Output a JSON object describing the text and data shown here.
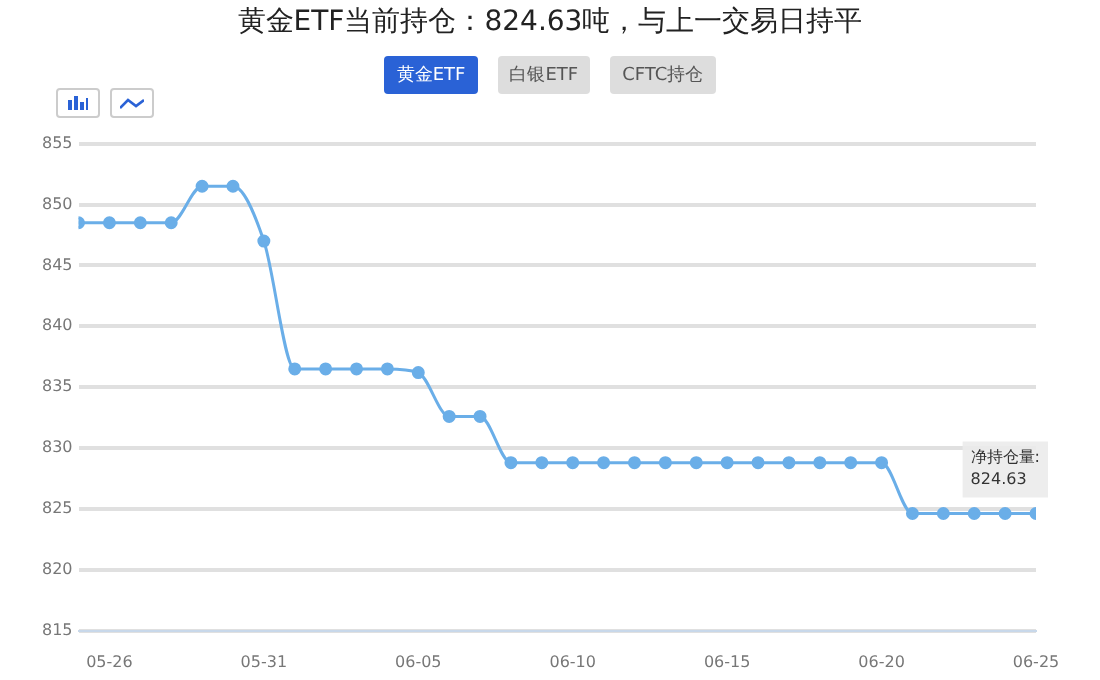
{
  "chart_data": {
    "type": "line",
    "title": "黄金ETF当前持仓：824.63吨，与上一交易日持平",
    "x": [
      "--05-25",
      "--05-26",
      "--05-27",
      "--05-28",
      "--05-29",
      "--05-30",
      "--05-31",
      "--06-01",
      "--06-02",
      "--06-03",
      "--06-04",
      "--06-05",
      "--06-06",
      "--06-07",
      "--06-08",
      "--06-09",
      "--06-10",
      "--06-11",
      "--06-12",
      "--06-13",
      "--06-14",
      "--06-15",
      "--06-16",
      "--06-17",
      "--06-18",
      "--06-19",
      "--06-20",
      "--06-21",
      "--06-22",
      "--06-23",
      "--06-24",
      "--06-25"
    ],
    "series": [
      {
        "color": "#6aaee8",
        "values": [
          848.5,
          848.5,
          848.5,
          848.5,
          851.5,
          851.5,
          847,
          836.5,
          836.5,
          836.5,
          836.5,
          836.2,
          832.6,
          832.6,
          828.8,
          828.8,
          828.8,
          828.8,
          828.8,
          828.8,
          828.8,
          828.8,
          828.8,
          828.8,
          828.8,
          828.8,
          828.8,
          824.63,
          824.63,
          824.63,
          824.63,
          824.63
        ]
      }
    ],
    "xlim": [
      "--05-25",
      "--06-25"
    ],
    "xticks": [
      {
        "value": "--05-26",
        "label": "05-26"
      },
      {
        "value": "--05-31",
        "label": "05-31"
      },
      {
        "value": "--06-05",
        "label": "06-05"
      },
      {
        "value": "--06-10",
        "label": "06-10"
      },
      {
        "value": "--06-15",
        "label": "06-15"
      },
      {
        "value": "--06-20",
        "label": "06-20"
      },
      {
        "value": "--06-25",
        "label": "06-25"
      }
    ],
    "ylim": [
      815,
      855
    ],
    "yticks": [
      815,
      820,
      825,
      830,
      835,
      840,
      845,
      850,
      855
    ],
    "grid": "y",
    "legend": false,
    "marker": "circle",
    "line_style": "solid",
    "annotations": [
      "黄金ETF",
      "白银ETF",
      "CFTC持仓",
      {
        "text": "净持仓量:\n824.63",
        "x": "--06-25",
        "y": 824.63
      }
    ]
  }
}
